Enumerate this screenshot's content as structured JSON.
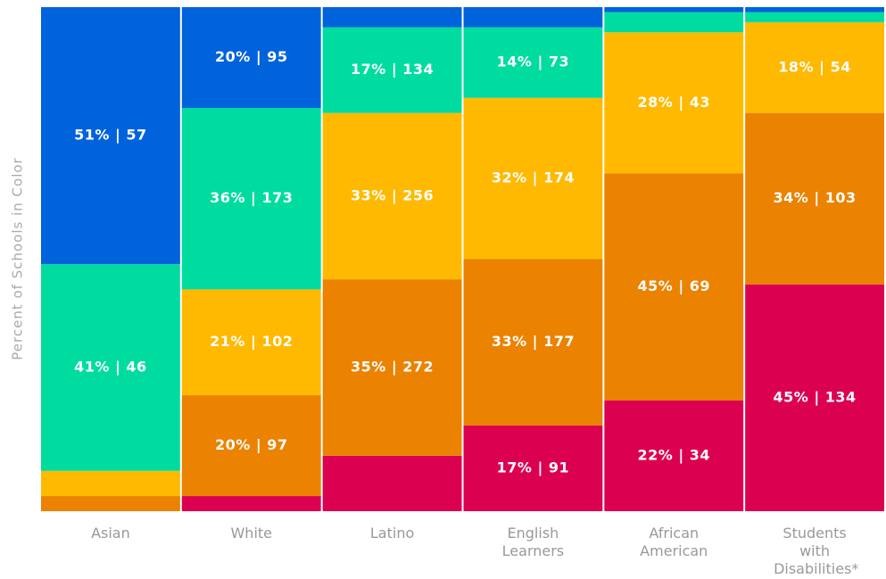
{
  "chart_data": {
    "type": "bar",
    "stacked": true,
    "y_label": "Percent of Schools in Color",
    "categories": [
      "Asian",
      "White",
      "Latino",
      "English Learners",
      "African American",
      "Students with Disabilities*"
    ],
    "ylim": [
      0,
      100
    ],
    "series": [
      {
        "color": "#dc0050",
        "values": [
          0,
          3,
          11,
          17,
          22,
          45
        ],
        "value_labels": [
          null,
          null,
          null,
          "17% | 91",
          "22% | 34",
          "45% | 134"
        ]
      },
      {
        "color": "#eb8200",
        "values": [
          3,
          20,
          35,
          33,
          45,
          34
        ],
        "value_labels": [
          null,
          "20% | 97",
          "35% | 272",
          "33% | 177",
          "45% | 69",
          "34% | 103"
        ]
      },
      {
        "color": "#ffb900",
        "values": [
          5,
          21,
          33,
          32,
          28,
          18
        ],
        "value_labels": [
          null,
          "21% | 102",
          "33% | 256",
          "32% | 174",
          "28% | 43",
          "18% | 54"
        ]
      },
      {
        "color": "#00dca0",
        "values": [
          41,
          36,
          17,
          14,
          4,
          2
        ],
        "value_labels": [
          "41% | 46",
          "36% | 173",
          "17% | 134",
          "14% | 73",
          null,
          null
        ]
      },
      {
        "color": "#0063dc",
        "values": [
          51,
          20,
          4,
          4,
          1,
          1
        ],
        "value_labels": [
          "51% | 57",
          "20% | 95",
          null,
          null,
          null,
          null
        ]
      }
    ]
  }
}
